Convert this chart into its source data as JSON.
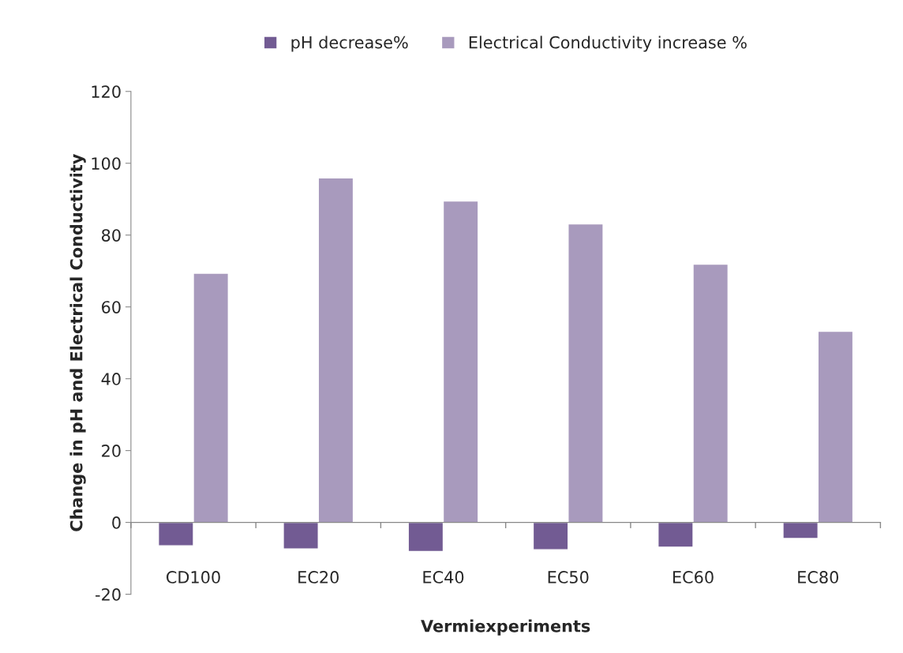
{
  "chart_data": {
    "type": "bar",
    "xlabel": "Vermiexperiments",
    "ylabel": "Change in pH and Electrical Conductivity",
    "categories": [
      "CD100",
      "EC20",
      "EC40",
      "EC50",
      "EC60",
      "EC80"
    ],
    "series": [
      {
        "name": "pH decrease%",
        "color": "#725b93",
        "values": [
          -6.5,
          -7.4,
          -8.1,
          -7.6,
          -6.9,
          -4.5
        ]
      },
      {
        "name": "Electrical Conductivity increase %",
        "color": "#a89abd",
        "values": [
          69.4,
          95.9,
          89.5,
          83.1,
          71.9,
          53.2
        ]
      }
    ],
    "ylim": [
      -20,
      120
    ],
    "yticks": [
      -20,
      0,
      20,
      40,
      60,
      80,
      100,
      120
    ],
    "legend": "top"
  }
}
